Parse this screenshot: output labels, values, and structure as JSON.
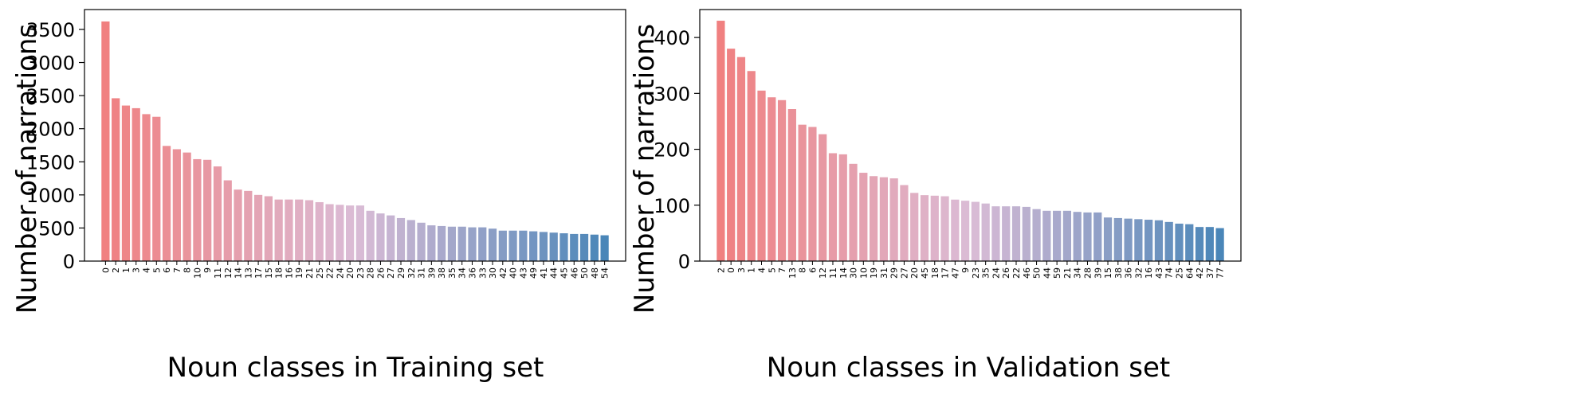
{
  "chart_data": [
    {
      "type": "bar",
      "xlabel": "Noun classes in Training set",
      "ylabel": "Number of narrations",
      "ylim": [
        0,
        3800
      ],
      "yticks": [
        0,
        500,
        1000,
        1500,
        2000,
        2500,
        3000,
        3500
      ],
      "grid": false,
      "color_gradient": [
        "#f08080",
        "#dbbcd6",
        "#4a86b8"
      ],
      "categories": [
        "0",
        "2",
        "1",
        "3",
        "4",
        "5",
        "6",
        "7",
        "8",
        "10",
        "9",
        "11",
        "12",
        "14",
        "13",
        "17",
        "15",
        "18",
        "16",
        "19",
        "21",
        "25",
        "22",
        "24",
        "20",
        "23",
        "28",
        "26",
        "27",
        "29",
        "32",
        "31",
        "39",
        "38",
        "35",
        "34",
        "36",
        "33",
        "30",
        "42",
        "40",
        "43",
        "49",
        "41",
        "44",
        "45",
        "46",
        "50",
        "48",
        "54"
      ],
      "values": [
        3620,
        2460,
        2350,
        2310,
        2220,
        2180,
        1740,
        1690,
        1640,
        1540,
        1530,
        1430,
        1220,
        1080,
        1060,
        1000,
        980,
        930,
        930,
        930,
        920,
        890,
        860,
        850,
        840,
        840,
        760,
        720,
        690,
        650,
        620,
        580,
        540,
        530,
        520,
        520,
        510,
        510,
        490,
        460,
        460,
        460,
        450,
        440,
        430,
        420,
        410,
        410,
        400,
        390
      ]
    },
    {
      "type": "bar",
      "xlabel": "Noun classes in Validation set",
      "ylabel": "Number of narrations",
      "ylim": [
        0,
        450
      ],
      "yticks": [
        0,
        100,
        200,
        300,
        400
      ],
      "grid": false,
      "color_gradient": [
        "#f08080",
        "#dbbcd6",
        "#4a86b8"
      ],
      "categories": [
        "2",
        "0",
        "3",
        "1",
        "4",
        "5",
        "7",
        "13",
        "8",
        "6",
        "12",
        "11",
        "14",
        "30",
        "10",
        "19",
        "31",
        "29",
        "27",
        "20",
        "45",
        "18",
        "17",
        "47",
        "9",
        "23",
        "35",
        "24",
        "26",
        "22",
        "46",
        "50",
        "44",
        "59",
        "21",
        "34",
        "28",
        "39",
        "15",
        "38",
        "36",
        "32",
        "16",
        "43",
        "74",
        "25",
        "64",
        "42",
        "37",
        "77"
      ],
      "values": [
        430,
        380,
        365,
        340,
        305,
        293,
        288,
        272,
        244,
        240,
        227,
        193,
        191,
        174,
        158,
        152,
        150,
        148,
        136,
        122,
        118,
        117,
        116,
        110,
        108,
        106,
        103,
        98,
        98,
        98,
        97,
        93,
        90,
        90,
        90,
        88,
        87,
        87,
        78,
        77,
        76,
        75,
        74,
        73,
        70,
        67,
        66,
        61,
        61,
        59
      ]
    }
  ]
}
